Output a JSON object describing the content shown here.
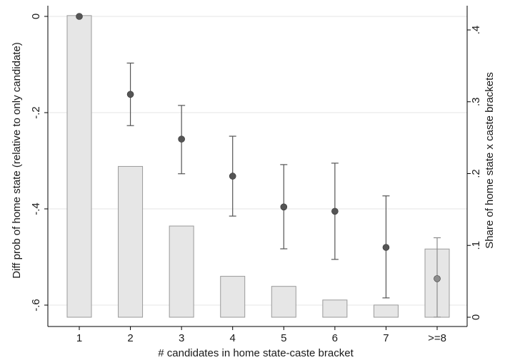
{
  "chart_data": {
    "type": "bar",
    "xlabel": "# candidates in home state-caste bracket",
    "ylabel_left": "Diff prob of home state (relative to only candidate)",
    "ylabel_right": "Share of home state x caste brackets",
    "categories": [
      "1",
      "2",
      "3",
      "4",
      "5",
      "6",
      "7",
      ">=8"
    ],
    "ylim_left": [
      -0.625,
      0.0
    ],
    "ylim_right": [
      0.0,
      0.42
    ],
    "left_ticks": [
      "0",
      "-.2",
      "-.4",
      "-.6"
    ],
    "right_ticks": [
      "0",
      ".1",
      ".2",
      ".3",
      ".4"
    ],
    "grid": true,
    "series": [
      {
        "kind": "bar",
        "axis": "right",
        "values": [
          0.42,
          0.21,
          0.127,
          0.057,
          0.043,
          0.024,
          0.017,
          0.095
        ],
        "color": "#e6e6e6"
      },
      {
        "kind": "point_with_ci",
        "axis": "left",
        "values": [
          0.0,
          -0.162,
          -0.255,
          -0.332,
          -0.396,
          -0.405,
          -0.48,
          -0.545
        ],
        "ci_low": [
          null,
          -0.227,
          -0.327,
          -0.415,
          -0.483,
          -0.505,
          -0.585,
          -0.625
        ],
        "ci_high": [
          null,
          -0.097,
          -0.185,
          -0.249,
          -0.308,
          -0.305,
          -0.373,
          -0.46
        ],
        "color": "#555555",
        "highlight_color": "#8c8c8c"
      }
    ]
  }
}
